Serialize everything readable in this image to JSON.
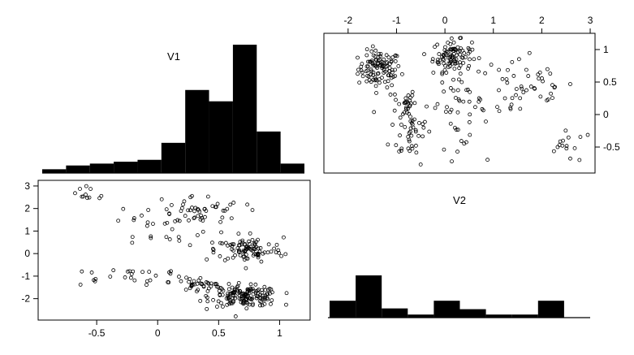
{
  "chart_data": [
    {
      "type": "histogram",
      "panel": "top-left",
      "title": "V1",
      "bins": [
        {
          "x0": -1.0,
          "x1": -0.8,
          "value": 0.01
        },
        {
          "x0": -0.8,
          "x1": -0.6,
          "value": 0.02
        },
        {
          "x0": -0.6,
          "x1": -0.4,
          "value": 0.025
        },
        {
          "x0": -0.4,
          "x1": -0.2,
          "value": 0.03
        },
        {
          "x0": -0.2,
          "x1": 0.0,
          "value": 0.035
        },
        {
          "x0": 0.0,
          "x1": 0.2,
          "value": 0.08
        },
        {
          "x0": 0.2,
          "x1": 0.4,
          "value": 0.22
        },
        {
          "x0": 0.4,
          "x1": 0.6,
          "value": 0.19
        },
        {
          "x0": 0.6,
          "x1": 0.8,
          "value": 0.34
        },
        {
          "x0": 0.8,
          "x1": 1.0,
          "value": 0.11
        },
        {
          "x0": 1.0,
          "x1": 1.2,
          "value": 0.025
        }
      ]
    },
    {
      "type": "scatter",
      "panel": "top-right",
      "x_ticks": [
        -2,
        -1,
        0,
        1,
        2,
        3
      ],
      "y_ticks": [
        -0.5,
        0,
        0.5,
        1
      ],
      "xlim": [
        -2.5,
        3.1
      ],
      "ylim": [
        -0.9,
        1.25
      ],
      "x_axis_position": "top",
      "y_axis_position": "right"
    },
    {
      "type": "scatter",
      "panel": "bottom-left",
      "x_ticks": [
        -0.5,
        0,
        0.5,
        1
      ],
      "y_ticks": [
        -2,
        -1,
        0,
        1,
        2,
        3
      ],
      "xlim": [
        -0.98,
        1.25
      ],
      "ylim": [
        -2.95,
        3.25
      ],
      "x_axis_position": "bottom",
      "y_axis_position": "left"
    },
    {
      "type": "histogram",
      "panel": "bottom-right",
      "title": "V2",
      "bins": [
        {
          "x0": -2.5,
          "x1": -2.0,
          "value": 0.22
        },
        {
          "x0": -2.0,
          "x1": -1.5,
          "value": 0.55
        },
        {
          "x0": -1.5,
          "x1": -1.0,
          "value": 0.12
        },
        {
          "x0": -1.0,
          "x1": -0.5,
          "value": 0.04
        },
        {
          "x0": -0.5,
          "x1": 0.0,
          "value": 0.22
        },
        {
          "x0": 0.0,
          "x1": 0.5,
          "value": 0.11
        },
        {
          "x0": 0.5,
          "x1": 1.0,
          "value": 0.04
        },
        {
          "x0": 1.0,
          "x1": 1.5,
          "value": 0.04
        },
        {
          "x0": 1.5,
          "x1": 2.0,
          "value": 0.22
        },
        {
          "x0": 2.0,
          "x1": 2.5,
          "value": 0.0
        }
      ]
    }
  ]
}
